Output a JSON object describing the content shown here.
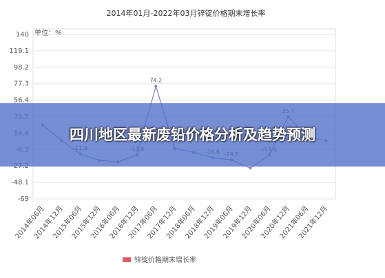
{
  "chart_data": {
    "type": "line",
    "title": "2014年01月-2022年03月锌锭价格期末增长率",
    "unit_label": "单位：%",
    "categories": [
      "2014年06月",
      "2014年12月",
      "2015年06月",
      "2015年12月",
      "2016年06月",
      "2016年12月",
      "2017年06月",
      "2017年12月",
      "2018年06月",
      "2018年12月",
      "2019年06月",
      "2019年12月",
      "2020年06月",
      "2020年12月",
      "2021年06月",
      "2021年12月"
    ],
    "series": [
      {
        "name": "锌锭价格期末增长率",
        "color": "#e05a6a",
        "line_color": "#8a8ccc",
        "values": [
          25,
          5,
          -11.9,
          -20,
          -22,
          -12.9,
          74.2,
          -5,
          -10,
          -16.6,
          -19.5,
          -30,
          -13.4,
          35.7,
          10,
          5
        ],
        "value_labels": [
          null,
          null,
          "-11.9",
          null,
          null,
          "-12.9",
          "74.2",
          null,
          null,
          "-16.6",
          "-19.5",
          null,
          "-13.4",
          "35.7",
          null,
          null
        ]
      }
    ],
    "ylim": [
      -69,
      140
    ],
    "yticks": [
      140,
      119.1,
      98.2,
      77.3,
      56.4,
      35.5,
      14.6,
      -6.3,
      -27.2,
      -48.1,
      -69
    ],
    "grid": true
  },
  "banner": {
    "text": "四川地区最新废铅价格分析及趋势预测"
  }
}
